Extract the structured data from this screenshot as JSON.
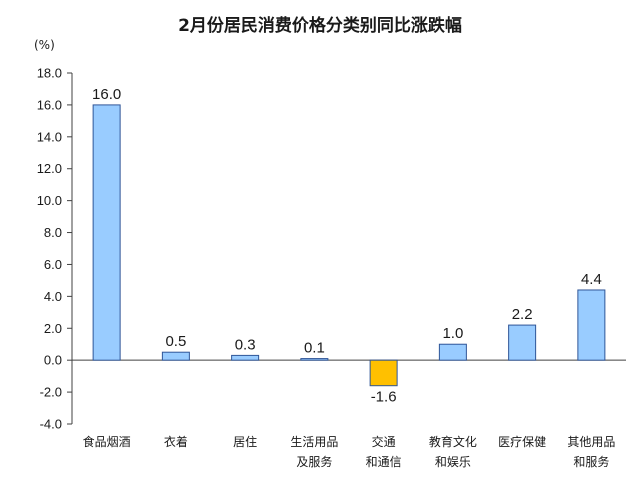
{
  "chart_data": {
    "type": "bar",
    "title": "2月份居民消费价格分类别同比涨跌幅",
    "unit": "(%)",
    "categories": [
      [
        "食品烟酒"
      ],
      [
        "衣着"
      ],
      [
        "居住"
      ],
      [
        "生活用品",
        "及服务"
      ],
      [
        "交通",
        "和通信"
      ],
      [
        "教育文化",
        "和娱乐"
      ],
      [
        "医疗保健"
      ],
      [
        "其他用品",
        "和服务"
      ]
    ],
    "values": [
      16.0,
      0.5,
      0.3,
      0.1,
      -1.6,
      1.0,
      2.2,
      4.4
    ],
    "value_labels": [
      "16.0",
      "0.5",
      "0.3",
      "0.1",
      "-1.6",
      "1.0",
      "2.2",
      "4.4"
    ],
    "ylim": [
      -4.0,
      18.0
    ],
    "yticks": [
      "-4.0",
      "-2.0",
      "0.0",
      "2.0",
      "4.0",
      "6.0",
      "8.0",
      "10.0",
      "12.0",
      "14.0",
      "16.0",
      "18.0"
    ],
    "grid": false,
    "colors": {
      "positive": "#99ccff",
      "negative": "#ffc000",
      "border": "#2f5597",
      "axis": "#404040"
    }
  }
}
